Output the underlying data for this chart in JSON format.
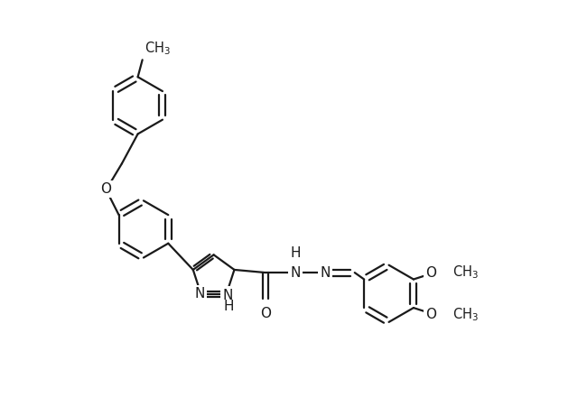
{
  "background_color": "#ffffff",
  "line_color": "#1a1a1a",
  "line_width": 1.6,
  "font_size": 11,
  "figsize": [
    6.4,
    4.51
  ],
  "dpi": 100,
  "xlim": [
    0,
    10
  ],
  "ylim": [
    0.5,
    7.5
  ]
}
